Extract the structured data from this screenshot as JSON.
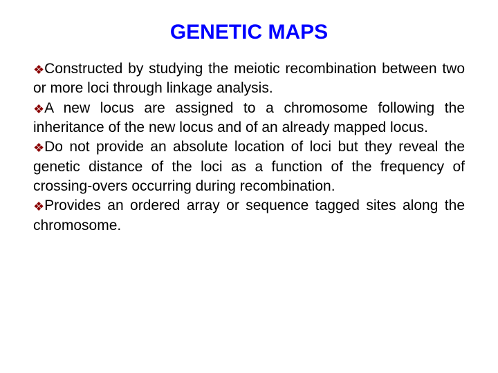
{
  "slide": {
    "title": "GENETIC MAPS",
    "title_fontsize": 30,
    "title_color": "#0000ff",
    "body_fontsize": 21,
    "body_color": "#000000",
    "bullet_color": "#8a0000",
    "bullet_glyph": "❖",
    "bullet_size": 18,
    "items": [
      "Constructed by studying the meiotic recombination between two or more loci through linkage analysis.",
      "A new locus are assigned to a chromosome following the inheritance of the new locus and of an already mapped locus.",
      "Do not provide an absolute location of loci but they reveal the genetic distance of the loci as a function of the frequency of crossing-overs occurring during recombination.",
      "Provides an ordered array or sequence tagged sites along the chromosome."
    ]
  }
}
